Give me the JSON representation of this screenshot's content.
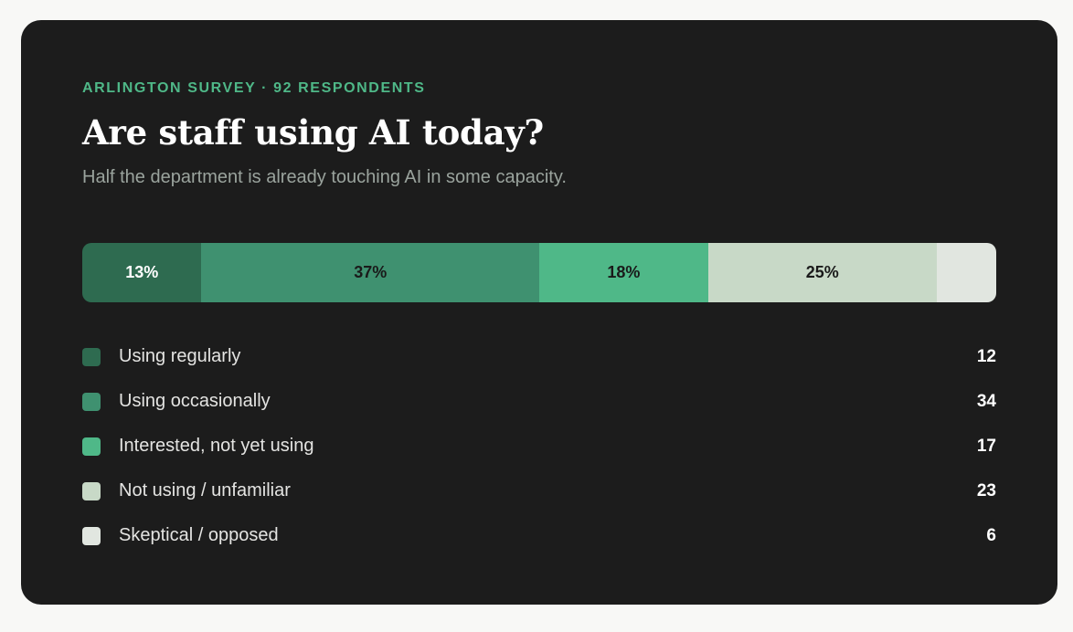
{
  "header": {
    "eyebrow": "ARLINGTON SURVEY · 92 RESPONDENTS",
    "title": "Are staff using AI today?",
    "subtitle": "Half the department is already touching AI in some capacity."
  },
  "colors": {
    "card_background": "#1c1c1c",
    "accent": "#4fb888"
  },
  "chart_data": {
    "type": "bar",
    "orientation": "horizontal-stacked-100",
    "total": 92,
    "categories": [
      "Using regularly",
      "Using occasionally",
      "Interested, not yet using",
      "Not using / unfamiliar",
      "Skeptical / opposed"
    ],
    "values": [
      12,
      34,
      17,
      23,
      6
    ],
    "percent_labels": [
      "13%",
      "37%",
      "18%",
      "25%",
      ""
    ],
    "colors": [
      "#2e6b50",
      "#3f9170",
      "#4fb888",
      "#c8d9c7",
      "#e1e6e0"
    ],
    "label_colors": [
      "#ffffff",
      "#1a1a1a",
      "#1a1a1a",
      "#1a1a1a",
      "#1a1a1a"
    ],
    "legend_placement": "below"
  }
}
